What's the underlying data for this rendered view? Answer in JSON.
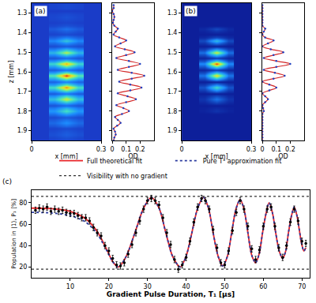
{
  "chart_data": [
    {
      "type": "heatmap",
      "label": "(a)",
      "xlabel": "x [mm]",
      "ylabel": "z [mm]",
      "profile_label": "OD",
      "xlim": [
        0,
        0.3
      ],
      "xticks": [
        0,
        0.3
      ],
      "ylim": [
        1.95,
        1.25
      ],
      "yticks": [
        1.3,
        1.4,
        1.5,
        1.6,
        1.7,
        1.8,
        1.9
      ],
      "profile_lim": [
        0,
        0.3
      ],
      "profile_ticks": [
        0,
        0.1,
        0.2
      ],
      "color": "#d42a2a",
      "orientation": "horizontal",
      "x": [
        0.1,
        0.15,
        0.2
      ],
      "y": [
        1.26,
        1.275,
        1.29,
        1.305,
        1.32,
        1.335,
        1.35,
        1.365,
        1.38,
        1.395,
        1.41,
        1.425,
        1.44,
        1.455,
        1.47,
        1.485,
        1.5,
        1.515,
        1.53,
        1.545,
        1.56,
        1.575,
        1.59,
        1.605,
        1.62,
        1.635,
        1.65,
        1.665,
        1.68,
        1.695,
        1.71,
        1.725,
        1.74,
        1.755,
        1.77,
        1.785,
        1.8,
        1.815,
        1.83,
        1.845,
        1.86,
        1.875,
        1.89,
        1.905,
        1.92,
        1.935,
        1.95
      ],
      "profile": [
        0.01,
        0.01,
        0,
        0.01,
        0.015,
        0.01,
        0.005,
        0.015,
        0.04,
        0.025,
        0.01,
        0.05,
        0.1,
        0.06,
        0.02,
        0.09,
        0.16,
        0.1,
        0.03,
        0.12,
        0.2,
        0.12,
        0.04,
        0.14,
        0.23,
        0.14,
        0.05,
        0.13,
        0.21,
        0.13,
        0.04,
        0.11,
        0.17,
        0.1,
        0.03,
        0.08,
        0.12,
        0.07,
        0.02,
        0.04,
        0.06,
        0.035,
        0.01,
        0.02,
        0.025,
        0.015,
        0.01
      ],
      "cells": [
        [
          0.006,
          0.011,
          0.006
        ],
        [
          0.006,
          0.011,
          0.006
        ],
        [
          0,
          0,
          0
        ],
        [
          0.006,
          0.011,
          0.006
        ],
        [
          0.009,
          0.017,
          0.009
        ],
        [
          0.006,
          0.011,
          0.006
        ],
        [
          0.003,
          0.006,
          0.003
        ],
        [
          0.009,
          0.017,
          0.009
        ],
        [
          0.024,
          0.044,
          0.024
        ],
        [
          0.015,
          0.028,
          0.015
        ],
        [
          0.006,
          0.011,
          0.006
        ],
        [
          0.03,
          0.055,
          0.03
        ],
        [
          0.06,
          0.11,
          0.06
        ],
        [
          0.036,
          0.066,
          0.036
        ],
        [
          0.012,
          0.022,
          0.012
        ],
        [
          0.054,
          0.099,
          0.054
        ],
        [
          0.096,
          0.176,
          0.096
        ],
        [
          0.06,
          0.11,
          0.06
        ],
        [
          0.018,
          0.033,
          0.018
        ],
        [
          0.072,
          0.132,
          0.072
        ],
        [
          0.12,
          0.22,
          0.12
        ],
        [
          0.072,
          0.132,
          0.072
        ],
        [
          0.024,
          0.044,
          0.024
        ],
        [
          0.084,
          0.154,
          0.084
        ],
        [
          0.138,
          0.253,
          0.138
        ],
        [
          0.084,
          0.154,
          0.084
        ],
        [
          0.03,
          0.055,
          0.03
        ],
        [
          0.078,
          0.143,
          0.078
        ],
        [
          0.126,
          0.231,
          0.126
        ],
        [
          0.078,
          0.143,
          0.078
        ],
        [
          0.024,
          0.044,
          0.024
        ],
        [
          0.066,
          0.121,
          0.066
        ],
        [
          0.102,
          0.187,
          0.102
        ],
        [
          0.06,
          0.11,
          0.06
        ],
        [
          0.018,
          0.033,
          0.018
        ],
        [
          0.048,
          0.088,
          0.048
        ],
        [
          0.072,
          0.132,
          0.072
        ],
        [
          0.042,
          0.077,
          0.042
        ],
        [
          0.012,
          0.022,
          0.012
        ],
        [
          0.024,
          0.044,
          0.024
        ],
        [
          0.036,
          0.066,
          0.036
        ],
        [
          0.021,
          0.039,
          0.021
        ],
        [
          0.006,
          0.011,
          0.006
        ],
        [
          0.012,
          0.022,
          0.012
        ],
        [
          0.015,
          0.028,
          0.015
        ],
        [
          0.009,
          0.017,
          0.009
        ],
        [
          0.006,
          0.011,
          0.006
        ]
      ]
    },
    {
      "type": "heatmap",
      "label": "(b)",
      "xlabel": "x [mm]",
      "profile_label": "OD",
      "xlim": [
        0,
        0.3
      ],
      "xticks": [
        0,
        0.3
      ],
      "ylim": [
        1.95,
        1.25
      ],
      "yticks": [
        1.3,
        1.4,
        1.5,
        1.6,
        1.7,
        1.8,
        1.9
      ],
      "profile_lim": [
        0,
        0.3
      ],
      "profile_ticks": [
        0,
        0.1,
        0.2
      ],
      "color": "#d42a2a",
      "orientation": "horizontal",
      "x": [
        0.1,
        0.15,
        0.2
      ],
      "y": [
        1.26,
        1.275,
        1.29,
        1.305,
        1.32,
        1.335,
        1.35,
        1.365,
        1.38,
        1.395,
        1.41,
        1.425,
        1.44,
        1.455,
        1.47,
        1.485,
        1.5,
        1.515,
        1.53,
        1.545,
        1.56,
        1.575,
        1.59,
        1.605,
        1.62,
        1.635,
        1.65,
        1.665,
        1.68,
        1.695,
        1.71,
        1.725,
        1.74,
        1.755,
        1.77,
        1.785,
        1.8,
        1.815,
        1.83,
        1.845,
        1.86,
        1.875,
        1.89,
        1.905,
        1.92,
        1.935,
        1.95
      ],
      "profile": [
        0,
        0,
        0,
        0,
        0,
        0,
        0,
        0,
        0.02,
        0.01,
        0,
        0.02,
        0.08,
        0.04,
        0,
        0.06,
        0.15,
        0.08,
        0.01,
        0.1,
        0.2,
        0.1,
        0.01,
        0.09,
        0.16,
        0.08,
        0,
        0.05,
        0.1,
        0.05,
        0,
        0.02,
        0.04,
        0.02,
        0,
        0.005,
        0.01,
        0,
        0,
        0,
        0,
        0,
        0,
        0,
        0,
        0,
        0
      ],
      "cells": [
        [
          0,
          0,
          0
        ],
        [
          0,
          0,
          0
        ],
        [
          0,
          0,
          0
        ],
        [
          0,
          0,
          0
        ],
        [
          0,
          0,
          0
        ],
        [
          0,
          0,
          0
        ],
        [
          0,
          0,
          0
        ],
        [
          0,
          0,
          0
        ],
        [
          0.006,
          0.024,
          0.006
        ],
        [
          0.003,
          0.012,
          0.003
        ],
        [
          0,
          0,
          0
        ],
        [
          0.006,
          0.024,
          0.006
        ],
        [
          0.024,
          0.096,
          0.024
        ],
        [
          0.012,
          0.048,
          0.012
        ],
        [
          0,
          0,
          0
        ],
        [
          0.018,
          0.072,
          0.018
        ],
        [
          0.045,
          0.18,
          0.045
        ],
        [
          0.024,
          0.096,
          0.024
        ],
        [
          0.003,
          0.012,
          0.003
        ],
        [
          0.03,
          0.12,
          0.03
        ],
        [
          0.06,
          0.24,
          0.06
        ],
        [
          0.03,
          0.12,
          0.03
        ],
        [
          0.003,
          0.012,
          0.003
        ],
        [
          0.027,
          0.108,
          0.027
        ],
        [
          0.048,
          0.192,
          0.048
        ],
        [
          0.024,
          0.096,
          0.024
        ],
        [
          0,
          0,
          0
        ],
        [
          0.015,
          0.06,
          0.015
        ],
        [
          0.03,
          0.12,
          0.03
        ],
        [
          0.015,
          0.06,
          0.015
        ],
        [
          0,
          0,
          0
        ],
        [
          0.006,
          0.024,
          0.006
        ],
        [
          0.012,
          0.048,
          0.012
        ],
        [
          0.006,
          0.024,
          0.006
        ],
        [
          0,
          0,
          0
        ],
        [
          0.0015,
          0.006,
          0.0015
        ],
        [
          0.003,
          0.012,
          0.003
        ],
        [
          0,
          0,
          0
        ],
        [
          0,
          0,
          0
        ],
        [
          0,
          0,
          0
        ],
        [
          0,
          0,
          0
        ],
        [
          0,
          0,
          0
        ],
        [
          0,
          0,
          0
        ],
        [
          0,
          0,
          0
        ],
        [
          0,
          0,
          0
        ],
        [
          0,
          0,
          0
        ],
        [
          0,
          0,
          0
        ]
      ]
    },
    {
      "type": "line",
      "label": "(c)",
      "xlabel": "Gradient Pulse Duration, T₁ [μs]",
      "ylabel": "Population in |1⟩, P₁ [%]",
      "xlim": [
        0,
        72
      ],
      "xticks": [
        10,
        20,
        30,
        40,
        50,
        60,
        70
      ],
      "ylim": [
        10,
        92
      ],
      "yticks": [
        20,
        40,
        60,
        80
      ],
      "legend": "top",
      "series": [
        {
          "name": "Full theoretical fit",
          "color": "#e8262a",
          "line_style": "solid",
          "x": [
            0,
            5,
            10,
            14,
            17,
            19.5,
            21,
            22.5,
            24.5,
            26.75,
            29,
            31,
            33,
            34.75,
            36.5,
            38.5,
            40,
            41.5,
            43,
            44.5,
            45.8,
            47,
            48.3,
            49.5,
            50.7,
            51.8,
            52.9,
            54,
            55,
            56,
            57,
            58,
            58.9,
            59.8,
            60.7,
            61.5,
            62.4,
            63.2,
            64.1,
            65,
            65.8,
            66.5,
            67.3,
            68,
            68.7,
            69.3,
            69.9,
            70.5,
            71
          ],
          "values": [
            75,
            74.5,
            72,
            65,
            53,
            36,
            25,
            20,
            30,
            52,
            75,
            85,
            75,
            52,
            30,
            20,
            30,
            52,
            75,
            85,
            75,
            52,
            30,
            21,
            30,
            52,
            74,
            83,
            74,
            52,
            31,
            24,
            32,
            52,
            70,
            80,
            70,
            52,
            35,
            28,
            35,
            52,
            68,
            76,
            68,
            55,
            42,
            35,
            38
          ]
        },
        {
          "name": "Pure T³ approximation fit",
          "color": "#2b3a9e",
          "line_style": "dot",
          "x": [
            0,
            5,
            10,
            14,
            17,
            19.5,
            21,
            22.5,
            24.5,
            26.75,
            29,
            31,
            33,
            34.75,
            36.5,
            38.5,
            40,
            41.5,
            43,
            44.5,
            45.8,
            47,
            48.3,
            49.5,
            50.7,
            51.8,
            52.9,
            54,
            55,
            56,
            57,
            58,
            58.9,
            59.8,
            60.7,
            61.5,
            62.4,
            63.2,
            64.1,
            65,
            65.8,
            66.5,
            67.3,
            68,
            68.7,
            69.3,
            69.9,
            70.5,
            71
          ],
          "values": [
            71,
            70.5,
            68,
            62,
            51,
            35,
            25,
            20,
            30,
            52,
            75,
            85,
            75,
            52,
            30,
            20,
            30,
            52,
            75,
            85,
            75,
            52,
            30,
            21,
            30,
            52,
            74,
            83,
            74,
            52,
            31,
            24,
            32,
            52,
            70,
            80,
            70,
            52,
            35,
            28,
            35,
            52,
            68,
            76,
            68,
            55,
            42,
            35,
            38
          ]
        },
        {
          "name": "Visibility with no gradient",
          "type": "hline",
          "color": "#333333",
          "line_style": "dot",
          "values": [
            86,
            18
          ]
        },
        {
          "type": "scatter",
          "marker": "circle",
          "color": "#000000",
          "error": 3,
          "x": [
            1,
            2,
            3,
            4,
            5,
            6,
            7,
            8,
            9,
            10,
            11,
            12,
            13,
            14,
            15,
            16,
            17,
            18,
            19,
            20,
            21,
            22,
            23,
            24,
            25,
            26,
            27,
            28,
            29,
            30,
            31,
            32,
            33,
            34,
            35,
            36,
            37,
            38,
            39,
            40,
            41,
            42,
            43,
            44,
            45,
            46,
            47,
            48,
            49,
            50,
            51,
            52,
            53,
            54,
            55,
            56,
            57,
            58,
            59,
            60,
            61,
            62,
            63,
            64,
            65,
            66,
            67,
            68,
            69,
            70,
            71
          ],
          "values": [
            73,
            75,
            74,
            76,
            72,
            74,
            72,
            73,
            71,
            70,
            70,
            68,
            66,
            66,
            63,
            57,
            52,
            49,
            40,
            35,
            28,
            22,
            21,
            24,
            32,
            41,
            52,
            63,
            74,
            82,
            84,
            82,
            78,
            66,
            52,
            41,
            27,
            18,
            22,
            29,
            44,
            62,
            76,
            84,
            82,
            74,
            55,
            38,
            24,
            22,
            35,
            54,
            71,
            82,
            74,
            58,
            37,
            27,
            36,
            58,
            74,
            76,
            58,
            38,
            29,
            40,
            62,
            74,
            63,
            44,
            42
          ]
        }
      ]
    }
  ]
}
